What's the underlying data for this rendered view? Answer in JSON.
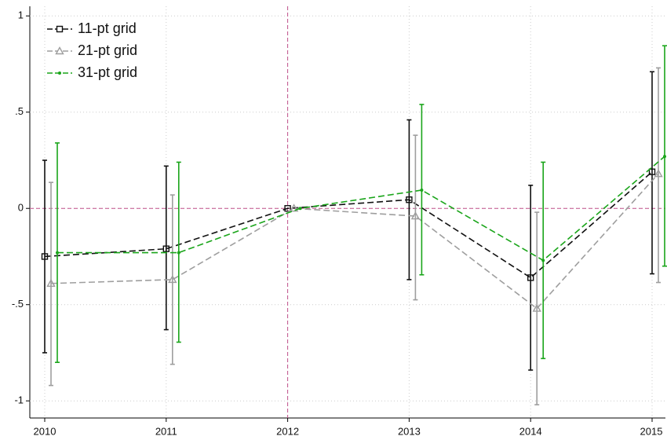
{
  "chart_data": {
    "type": "line_errorbar",
    "categories": [
      "2010",
      "2011",
      "2012",
      "2013",
      "2014",
      "2015"
    ],
    "series": [
      {
        "name": "11-pt grid",
        "color": "#111111",
        "marker": "square",
        "values": [
          -0.25,
          -0.21,
          0,
          0.045,
          -0.36,
          0.19
        ],
        "upper": [
          0.25,
          0.22,
          null,
          0.46,
          0.12,
          0.71
        ],
        "lower": [
          -0.75,
          -0.63,
          null,
          -0.37,
          -0.84,
          -0.34
        ]
      },
      {
        "name": "21-pt grid",
        "color": "#9e9e9e",
        "marker": "triangle",
        "values": [
          -0.39,
          -0.37,
          0,
          -0.04,
          -0.52,
          0.18
        ],
        "upper": [
          0.135,
          0.07,
          null,
          0.38,
          -0.02,
          0.73
        ],
        "lower": [
          -0.92,
          -0.81,
          null,
          -0.475,
          -1.02,
          -0.385
        ]
      },
      {
        "name": "31-pt grid",
        "color": "#1aa51a",
        "marker": "dot",
        "values": [
          -0.23,
          -0.23,
          0,
          0.095,
          -0.27,
          0.27
        ],
        "upper": [
          0.34,
          0.24,
          null,
          0.54,
          0.24,
          0.845
        ],
        "lower": [
          -0.8,
          -0.695,
          null,
          -0.345,
          -0.78,
          -0.3
        ]
      }
    ],
    "ylim": [
      -1.04,
      1.05
    ],
    "yticks": [
      {
        "value": -1,
        "label": "-1"
      },
      {
        "value": -0.5,
        "label": "-.5"
      },
      0,
      {
        "value": 0.5,
        "label": ".5"
      },
      1
    ],
    "reference_lines": {
      "x": "2012",
      "y": 0,
      "color": "#c0508a"
    },
    "grid": true,
    "legend": "top-left"
  }
}
